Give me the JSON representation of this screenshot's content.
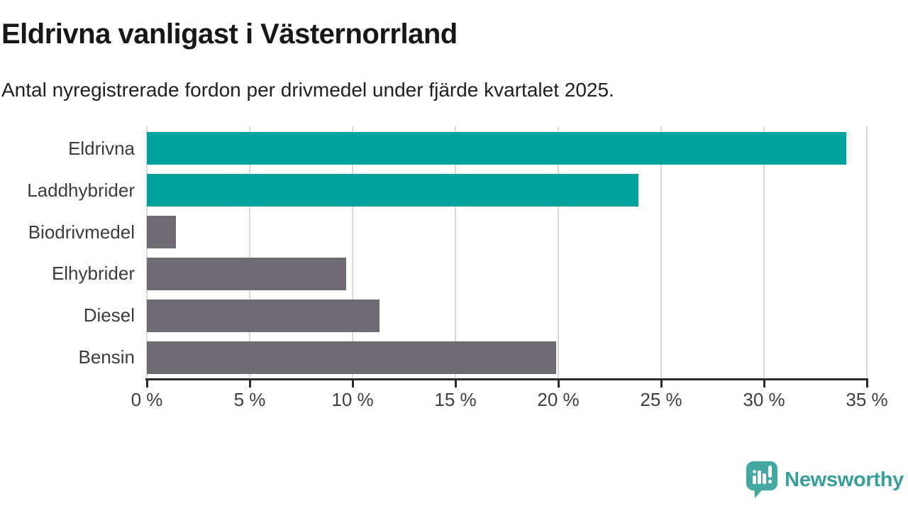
{
  "header": {
    "title": "Eldrivna vanligast i Västernorrland",
    "subtitle": "Antal nyregistrerade fordon per drivmedel under fjärde kvartalet 2025."
  },
  "chart_data": {
    "type": "bar",
    "orientation": "horizontal",
    "title": "Eldrivna vanligast i Västernorrland",
    "subtitle": "Antal nyregistrerade fordon per drivmedel under fjärde kvartalet 2025.",
    "categories": [
      "Eldrivna",
      "Laddhybrider",
      "Biodrivmedel",
      "Elhybrider",
      "Diesel",
      "Bensin"
    ],
    "values": [
      34.0,
      23.9,
      1.4,
      9.7,
      11.3,
      19.9
    ],
    "unit": "%",
    "xlim": [
      0,
      35
    ],
    "x_ticks": [
      0,
      5,
      10,
      15,
      20,
      25,
      30,
      35
    ],
    "x_tick_labels": [
      "0 %",
      "5 %",
      "10 %",
      "15 %",
      "20 %",
      "25 %",
      "30 %",
      "35 %"
    ],
    "bar_colors": [
      "#00a39b",
      "#00a39b",
      "#6e6a72",
      "#6e6a72",
      "#6e6a72",
      "#6e6a72"
    ],
    "highlight_color": "#00a39b",
    "default_color": "#6e6a72",
    "grid": true,
    "legend": "none"
  },
  "footer": {
    "brand": "Newsworthy",
    "brand_color": "#379e98",
    "logo_color": "#44a7a0",
    "logo_icon": "speech-bubble-bar-chart-icon"
  }
}
